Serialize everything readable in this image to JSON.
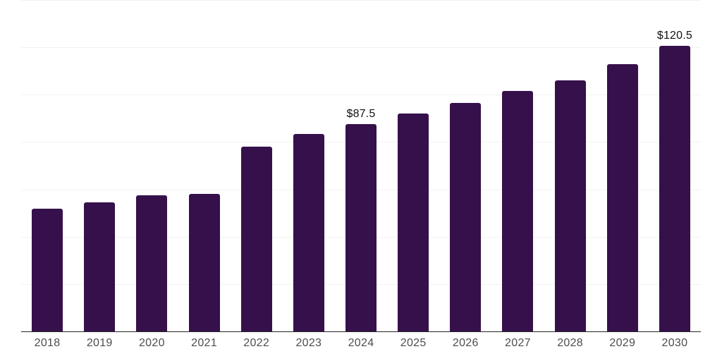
{
  "chart_data": {
    "type": "bar",
    "title": "",
    "xlabel": "",
    "ylabel": "",
    "categories": [
      "2018",
      "2019",
      "2020",
      "2021",
      "2022",
      "2023",
      "2024",
      "2025",
      "2026",
      "2027",
      "2028",
      "2029",
      "2030"
    ],
    "values": [
      51.8,
      54.4,
      57.6,
      58.2,
      78.0,
      83.5,
      87.5,
      92.0,
      96.5,
      101.5,
      106.0,
      112.8,
      120.5
    ],
    "point_labels": [
      "",
      "",
      "",
      "",
      "",
      "",
      "$87.5",
      "",
      "",
      "",
      "",
      "",
      "$120.5"
    ],
    "ylim": [
      0,
      140
    ],
    "grid_step": 20,
    "grid": true,
    "legend": false,
    "y_tick_labels_shown": false,
    "bar_color": "#36104B",
    "grid_color": "#f2f2f2",
    "axis_line_color": "#262626",
    "tick_label_color": "#4d4d4d",
    "point_label_color": "#111111",
    "background_color": "#ffffff"
  }
}
